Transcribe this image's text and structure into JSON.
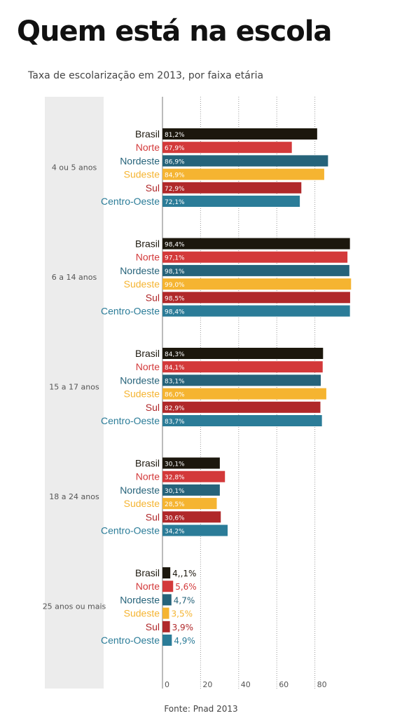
{
  "title": "Quem está na escola",
  "subtitle": "Taxa de escolarização em 2013, por faixa etária",
  "source": "Fonte: Pnad 2013",
  "colors": {
    "Brasil": "#1c170d",
    "Norte": "#d3393a",
    "Nordeste": "#26637a",
    "Sudeste": "#f5b431",
    "Sul": "#b0282a",
    "Centro-Oeste": "#2b7c98",
    "group_band": "#ececec",
    "axis": "#777777",
    "grid": "#9a9a9a"
  },
  "chart_data": {
    "type": "bar",
    "orientation": "horizontal",
    "categories": [
      "4 ou 5 anos",
      "6 a 14 anos",
      "15 a 17 anos",
      "18 a 24 anos",
      "25 anos ou mais"
    ],
    "series": [
      {
        "name": "Brasil",
        "values": [
          81.2,
          98.4,
          84.3,
          30.1,
          4.1
        ],
        "labels": [
          "81,2%",
          "98,4%",
          "84,3%",
          "30,1%",
          "4,,1%"
        ]
      },
      {
        "name": "Norte",
        "values": [
          67.9,
          97.1,
          84.1,
          32.8,
          5.6
        ],
        "labels": [
          "67,9%",
          "97,1%",
          "84,1%",
          "32,8%",
          "5,6%"
        ]
      },
      {
        "name": "Nordeste",
        "values": [
          86.9,
          98.1,
          83.1,
          30.1,
          4.7
        ],
        "labels": [
          "86,9%",
          "98,1%",
          "83,1%",
          "30,1%",
          "4,7%"
        ]
      },
      {
        "name": "Sudeste",
        "values": [
          84.9,
          99.0,
          86.0,
          28.5,
          3.5
        ],
        "labels": [
          "84,9%",
          "99,0%",
          "86,0%",
          "28,5%",
          "3,5%"
        ]
      },
      {
        "name": "Sul",
        "values": [
          72.9,
          98.5,
          82.9,
          30.6,
          3.9
        ],
        "labels": [
          "72,9%",
          "98,5%",
          "82,9%",
          "30,6%",
          "3,9%"
        ]
      },
      {
        "name": "Centro-Oeste",
        "values": [
          72.1,
          98.4,
          83.7,
          34.2,
          4.9
        ],
        "labels": [
          "72,1%",
          "98,4%",
          "83,7%",
          "34,2%",
          "4,9%"
        ]
      }
    ],
    "xticks": [
      "0",
      "20",
      "40",
      "60",
      "80"
    ],
    "xtick_values": [
      0,
      20,
      40,
      60,
      80
    ],
    "xlim": [
      0,
      100
    ],
    "grid": true,
    "grid_style": "dotted-vertical",
    "value_labels": "inside-bar-start; outside for small values"
  }
}
